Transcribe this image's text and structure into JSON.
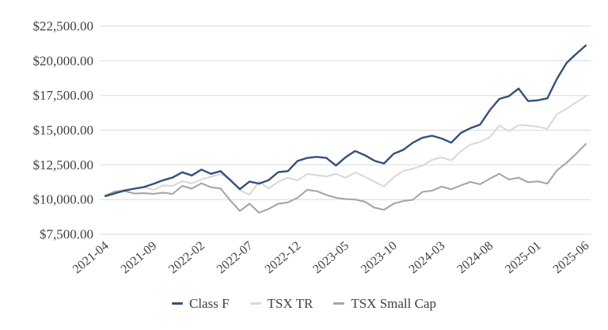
{
  "chart_data": {
    "type": "line",
    "title": "",
    "xlabel": "",
    "ylabel": "",
    "grid": true,
    "legend_position": "bottom",
    "background": "#FFFFFF",
    "gridline_color": "#D9D9D9",
    "axis_text_color": "#404040",
    "ylim": [
      7500,
      22500
    ],
    "y_ticks": [
      {
        "value": 7500,
        "label": "$7,500.00"
      },
      {
        "value": 10000,
        "label": "$10,000.00"
      },
      {
        "value": 12500,
        "label": "$12,500.00"
      },
      {
        "value": 15000,
        "label": "$15,000.00"
      },
      {
        "value": 17500,
        "label": "$17,500.00"
      },
      {
        "value": 20000,
        "label": "$20,000.00"
      },
      {
        "value": 22500,
        "label": "$22,500.00"
      }
    ],
    "x_tick_every": 5,
    "x_tick_labels": [
      "2021-04",
      "2021-09",
      "2022-02",
      "2022-07",
      "2022-12",
      "2023-05",
      "2023-10",
      "2024-03",
      "2024-08",
      "2025-01",
      "2025-06"
    ],
    "x": [
      "2021-04",
      "2021-05",
      "2021-06",
      "2021-07",
      "2021-08",
      "2021-09",
      "2021-10",
      "2021-11",
      "2021-12",
      "2022-01",
      "2022-02",
      "2022-03",
      "2022-04",
      "2022-05",
      "2022-06",
      "2022-07",
      "2022-08",
      "2022-09",
      "2022-10",
      "2022-11",
      "2022-12",
      "2023-01",
      "2023-02",
      "2023-03",
      "2023-04",
      "2023-05",
      "2023-06",
      "2023-07",
      "2023-08",
      "2023-09",
      "2023-10",
      "2023-11",
      "2023-12",
      "2024-01",
      "2024-02",
      "2024-03",
      "2024-04",
      "2024-05",
      "2024-06",
      "2024-07",
      "2024-08",
      "2024-09",
      "2024-10",
      "2024-11",
      "2024-12",
      "2025-01",
      "2025-02",
      "2025-03",
      "2025-04",
      "2025-05",
      "2025-06"
    ],
    "series": [
      {
        "name": "Class F",
        "color": "#34517B",
        "line_width": 2.4,
        "values": [
          10250,
          10450,
          10650,
          10780,
          10900,
          11130,
          11390,
          11590,
          11965,
          11740,
          12160,
          11850,
          12050,
          11400,
          10750,
          11300,
          11150,
          11400,
          11980,
          12050,
          12780,
          13000,
          13080,
          13000,
          12450,
          13050,
          13500,
          13200,
          12800,
          12600,
          13300,
          13580,
          14100,
          14450,
          14600,
          14400,
          14100,
          14800,
          15150,
          15400,
          16430,
          17250,
          17450,
          18000,
          17100,
          17150,
          17300,
          18700,
          19850,
          20500,
          21100
        ]
      },
      {
        "name": "TSX TR",
        "color": "#D9D9D9",
        "line_width": 2.1,
        "values": [
          10300,
          10600,
          10680,
          10800,
          10900,
          10700,
          11020,
          10980,
          11320,
          11170,
          11450,
          11650,
          11840,
          11450,
          10670,
          10350,
          11280,
          10800,
          11280,
          11570,
          11380,
          11850,
          11760,
          11660,
          11850,
          11570,
          11950,
          11650,
          11280,
          10950,
          11590,
          12060,
          12220,
          12440,
          12860,
          13050,
          12820,
          13480,
          13960,
          14150,
          14500,
          15330,
          14940,
          15370,
          15330,
          15250,
          15100,
          16150,
          16550,
          17000,
          17450
        ]
      },
      {
        "name": "TSX Small Cap",
        "color": "#A6A6A6",
        "line_width": 2.1,
        "values": [
          10270,
          10560,
          10620,
          10440,
          10460,
          10410,
          10500,
          10410,
          10980,
          10790,
          11170,
          10890,
          10790,
          9930,
          9180,
          9700,
          9050,
          9330,
          9700,
          9790,
          10130,
          10700,
          10610,
          10330,
          10130,
          10040,
          10000,
          9850,
          9420,
          9260,
          9700,
          9890,
          9980,
          10550,
          10640,
          10930,
          10740,
          11020,
          11270,
          11100,
          11500,
          11860,
          11440,
          11580,
          11250,
          11310,
          11150,
          12100,
          12650,
          13300,
          14000
        ]
      }
    ]
  }
}
